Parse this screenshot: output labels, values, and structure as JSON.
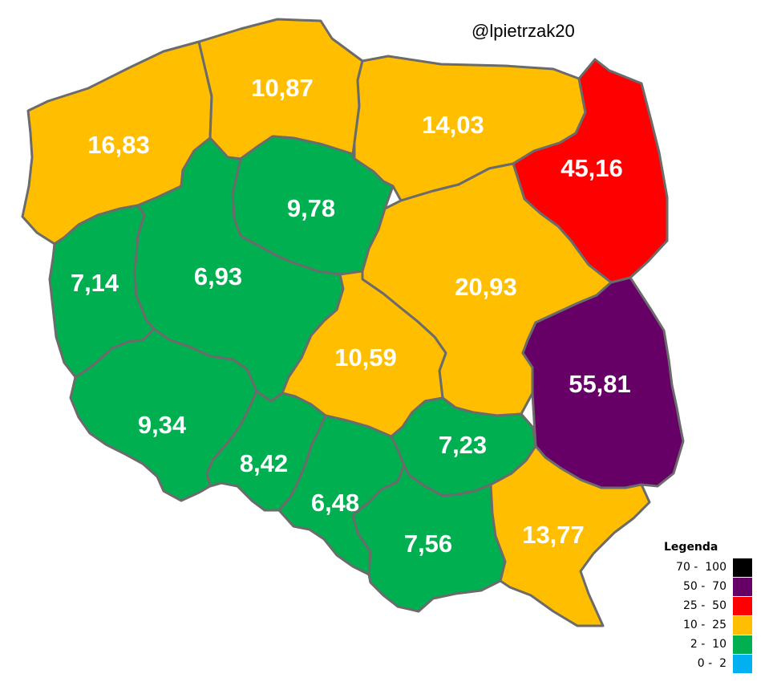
{
  "author": "@lpietrzak20",
  "colors": {
    "70-100": "#000000",
    "50-70": "#660066",
    "25-50": "#ff0000",
    "10-25": "#ffbf00",
    "2-10": "#00b050",
    "0-2": "#00b0f0",
    "border": "#6b6b6b",
    "label": "#ffffff"
  },
  "regions": [
    {
      "name": "Zachodniopomorskie",
      "value": "16,83",
      "bin": "10-25"
    },
    {
      "name": "Pomorskie",
      "value": "10,87",
      "bin": "10-25"
    },
    {
      "name": "Warmińsko-Mazurskie",
      "value": "14,03",
      "bin": "10-25"
    },
    {
      "name": "Podlaskie",
      "value": "45,16",
      "bin": "25-50"
    },
    {
      "name": "Kujawsko-Pomorskie",
      "value": "9,78",
      "bin": "2-10"
    },
    {
      "name": "Lubuskie",
      "value": "7,14",
      "bin": "2-10"
    },
    {
      "name": "Wielkopolskie",
      "value": "6,93",
      "bin": "2-10"
    },
    {
      "name": "Mazowieckie",
      "value": "20,93",
      "bin": "10-25"
    },
    {
      "name": "Łódzkie",
      "value": "10,59",
      "bin": "10-25"
    },
    {
      "name": "Lubelskie",
      "value": "55,81",
      "bin": "50-70"
    },
    {
      "name": "Dolnośląskie",
      "value": "9,34",
      "bin": "2-10"
    },
    {
      "name": "Opolskie",
      "value": "8,42",
      "bin": "2-10"
    },
    {
      "name": "Śląskie",
      "value": "6,48",
      "bin": "2-10"
    },
    {
      "name": "Świętokrzyskie",
      "value": "7,23",
      "bin": "2-10"
    },
    {
      "name": "Małopolskie",
      "value": "7,56",
      "bin": "2-10"
    },
    {
      "name": "Podkarpackie",
      "value": "13,77",
      "bin": "10-25"
    }
  ],
  "legend": {
    "title": "Legenda",
    "items": [
      {
        "range": "70 -  100",
        "bin": "70-100"
      },
      {
        "range": "50 -  70",
        "bin": "50-70"
      },
      {
        "range": "25 -  50",
        "bin": "25-50"
      },
      {
        "range": "10 -  25",
        "bin": "10-25"
      },
      {
        "range": "2 -  10",
        "bin": "2-10"
      },
      {
        "range": "0 -  2",
        "bin": "0-2"
      }
    ]
  }
}
